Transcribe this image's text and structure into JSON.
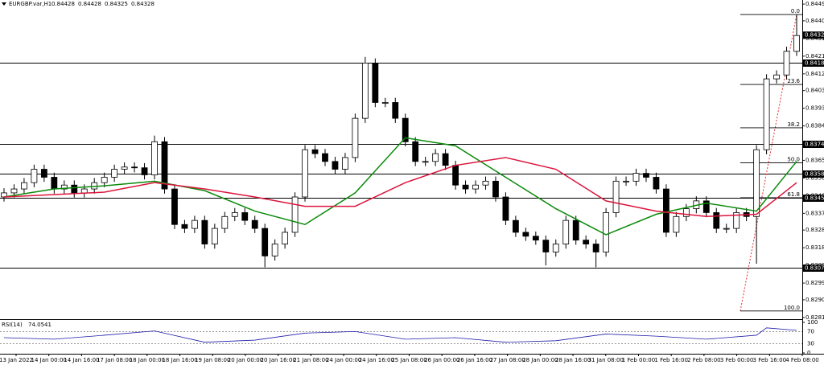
{
  "chart_data": {
    "type": "candlestick",
    "symbol": "EURGBP.var,H1",
    "quote": [
      0.84428,
      0.84428,
      0.84325,
      0.84328
    ],
    "ylim": [
      0.82801,
      0.84517
    ],
    "yticks": [
      0.84495,
      0.84405,
      {
        "value": 0.8431,
        "label": "0.84310"
      },
      0.84215,
      {
        "value": 0.8412,
        "label": "0.84120"
      },
      {
        "value": 0.8403,
        "label": "0.84030"
      },
      0.83935,
      {
        "value": 0.8384,
        "label": "0.83840"
      },
      0.83745,
      0.83655,
      {
        "value": 0.8356,
        "label": "0.83560"
      },
      0.83465,
      {
        "value": 0.8337,
        "label": "0.83370"
      },
      {
        "value": 0.8328,
        "label": "0.83280"
      },
      0.83185,
      {
        "value": 0.8309,
        "label": "0.83090"
      },
      0.82995,
      0.82905,
      {
        "value": 0.8281,
        "label": "0.82810"
      }
    ],
    "up_color": "#ffffff",
    "down_color": "#000000",
    "open": [
      0.83458,
      0.8348,
      0.83501,
      0.83535,
      0.83607,
      0.83564,
      0.83501,
      0.83522,
      0.8348,
      0.83501,
      0.83535,
      0.83564,
      0.83607,
      0.83619,
      0.83615,
      0.83577,
      0.83755,
      0.83501,
      0.8331,
      0.83289,
      0.83332,
      0.83205,
      0.83289,
      0.83353,
      0.83374,
      0.83332,
      0.83289,
      0.83141,
      0.83205,
      0.83268,
      0.83458,
      0.83712,
      0.83691,
      0.83649,
      0.83607,
      0.8367,
      0.83881,
      0.84178,
      0.83966,
      0.83966,
      0.83881,
      0.83755,
      0.83649,
      0.83649,
      0.83691,
      0.83628,
      0.83522,
      0.83501,
      0.83522,
      0.83543,
      0.83458,
      0.83332,
      0.83268,
      0.83247,
      0.83226,
      0.83162,
      0.83205,
      0.83332,
      0.83226,
      0.83205,
      0.83162,
      0.83374,
      0.83543,
      0.83543,
      0.83585,
      0.83564,
      0.83501,
      0.83268,
      0.83353,
      0.83395,
      0.83437,
      0.83374,
      0.83289,
      0.83289,
      0.83374,
      0.83353,
      0.83712,
      0.84093,
      0.84114,
      0.84241
    ],
    "high": [
      0.83505,
      0.83526,
      0.8356,
      0.83632,
      0.83632,
      0.83589,
      0.83547,
      0.83547,
      0.83526,
      0.8356,
      0.83589,
      0.83632,
      0.83644,
      0.83644,
      0.8364,
      0.83788,
      0.8378,
      0.83526,
      0.83335,
      0.83357,
      0.83357,
      0.83314,
      0.83378,
      0.83399,
      0.83399,
      0.83357,
      0.83314,
      0.8323,
      0.83293,
      0.83483,
      0.83737,
      0.83737,
      0.83716,
      0.83674,
      0.83695,
      0.83906,
      0.84211,
      0.84203,
      0.83991,
      0.83991,
      0.83906,
      0.8378,
      0.83674,
      0.83716,
      0.83716,
      0.83653,
      0.83547,
      0.83547,
      0.83568,
      0.83568,
      0.83483,
      0.83357,
      0.83293,
      0.83272,
      0.83251,
      0.8323,
      0.83357,
      0.83357,
      0.83251,
      0.8323,
      0.83399,
      0.83568,
      0.83568,
      0.8361,
      0.8361,
      0.83589,
      0.83526,
      0.83378,
      0.8342,
      0.83462,
      0.83462,
      0.83399,
      0.83314,
      0.83399,
      0.83399,
      0.83737,
      0.84118,
      0.84139,
      0.84266,
      0.8444
    ],
    "low": [
      0.83433,
      0.83455,
      0.83476,
      0.8351,
      0.83539,
      0.83476,
      0.83476,
      0.83455,
      0.83455,
      0.83476,
      0.8351,
      0.83539,
      0.83582,
      0.8359,
      0.83552,
      0.83552,
      0.83476,
      0.83285,
      0.83264,
      0.83264,
      0.8318,
      0.8318,
      0.83264,
      0.83328,
      0.83307,
      0.83264,
      0.8308,
      0.83116,
      0.8318,
      0.83243,
      0.83433,
      0.83666,
      0.83624,
      0.83582,
      0.83582,
      0.83645,
      0.83856,
      0.83941,
      0.83941,
      0.83856,
      0.8373,
      0.83624,
      0.83624,
      0.83624,
      0.83603,
      0.83497,
      0.83476,
      0.83476,
      0.83497,
      0.83433,
      0.83307,
      0.83243,
      0.83222,
      0.83201,
      0.8309,
      0.83137,
      0.8318,
      0.83201,
      0.8318,
      0.8308,
      0.83137,
      0.83349,
      0.83518,
      0.83518,
      0.83539,
      0.83476,
      0.83243,
      0.83243,
      0.83328,
      0.8337,
      0.83349,
      0.83264,
      0.83264,
      0.83264,
      0.83328,
      0.83099,
      0.83687,
      0.84068,
      0.84089,
      0.84216
    ],
    "close": [
      0.8348,
      0.83501,
      0.83535,
      0.83607,
      0.83564,
      0.83501,
      0.83522,
      0.8348,
      0.83501,
      0.83535,
      0.83564,
      0.83607,
      0.83619,
      0.83615,
      0.83577,
      0.83755,
      0.83501,
      0.8331,
      0.83289,
      0.83332,
      0.83205,
      0.83289,
      0.83353,
      0.83374,
      0.83332,
      0.83289,
      0.83141,
      0.83205,
      0.83268,
      0.83458,
      0.83712,
      0.83691,
      0.83649,
      0.83607,
      0.8367,
      0.83881,
      0.84178,
      0.83966,
      0.83966,
      0.83881,
      0.83755,
      0.83649,
      0.83649,
      0.83691,
      0.83628,
      0.83522,
      0.83501,
      0.83522,
      0.83543,
      0.83458,
      0.83332,
      0.83268,
      0.83247,
      0.83226,
      0.83162,
      0.83205,
      0.83332,
      0.83226,
      0.83205,
      0.83162,
      0.83374,
      0.83543,
      0.83543,
      0.83585,
      0.83564,
      0.83501,
      0.83268,
      0.83353,
      0.83395,
      0.83437,
      0.83374,
      0.83289,
      0.83289,
      0.83374,
      0.83353,
      0.83712,
      0.84093,
      0.84114,
      0.84241,
      0.84326
    ],
    "series": [
      {
        "color": "#0a8a0a",
        "x": [
          0,
          5,
          10,
          15,
          20,
          25,
          30,
          35,
          40,
          45,
          50,
          55,
          60,
          65,
          70,
          75,
          79
        ],
        "values": [
          0.83458,
          0.83501,
          0.83518,
          0.83543,
          0.83492,
          0.83382,
          0.8331,
          0.8348,
          0.83776,
          0.83733,
          0.83564,
          0.83395,
          0.83255,
          0.83365,
          0.83425,
          0.83382,
          0.83649
        ]
      },
      {
        "color": "#dc143c",
        "x": [
          0,
          5,
          10,
          15,
          20,
          25,
          30,
          35,
          40,
          45,
          50,
          55,
          60,
          65,
          70,
          75,
          79
        ],
        "values": [
          0.83458,
          0.83471,
          0.83484,
          0.83535,
          0.83501,
          0.83458,
          0.83408,
          0.83408,
          0.83535,
          0.83628,
          0.8367,
          0.83607,
          0.83437,
          0.83382,
          0.83353,
          0.83365,
          0.83535
        ]
      }
    ],
    "levels": [
      0.84182,
      0.83742,
      0.83582,
      0.83454,
      0.83076
    ],
    "last_price": 0.84328,
    "fib": {
      "high": 0.84439,
      "low": 0.82845,
      "levels": [
        {
          "value": 0,
          "label": "0.0"
        },
        23.6,
        38.2,
        {
          "value": 50,
          "label": "50.0"
        },
        61.8,
        {
          "value": 100,
          "label": "100.0"
        }
      ]
    },
    "rsi": {
      "name": "RSI(14)",
      "color": "#1c1ca8",
      "x": [
        0,
        5,
        10,
        15,
        20,
        25,
        30,
        35,
        40,
        45,
        50,
        55,
        60,
        65,
        70,
        75,
        76,
        79
      ],
      "values": [
        50,
        45,
        58,
        72,
        35,
        42,
        65,
        70,
        45,
        50,
        35,
        40,
        62,
        55,
        45,
        58,
        82,
        74.0541
      ],
      "ylim": [
        0,
        100
      ],
      "yticks": [
        100,
        70,
        30,
        0
      ]
    },
    "xtick_labels": [
      "13 Jan 2022",
      "14 Jan 00:00",
      "14 Jan 16:00",
      "17 Jan 08:00",
      "18 Jan 00:00",
      "18 Jan 16:00",
      "19 Jan 08:00",
      "20 Jan 00:00",
      "20 Jan 16:00",
      "21 Jan 08:00",
      "24 Jan 00:00",
      "24 Jan 16:00",
      "25 Jan 08:00",
      "26 Jan 00:00",
      "26 Jan 16:00",
      "27 Jan 08:00",
      "28 Jan 00:00",
      "28 Jan 16:00",
      "31 Jan 08:00",
      "1 Feb 00:00",
      "1 Feb 16:00",
      "2 Feb 08:00",
      "3 Feb 00:00",
      "3 Feb 16:00",
      "4 Feb 08:00"
    ]
  }
}
